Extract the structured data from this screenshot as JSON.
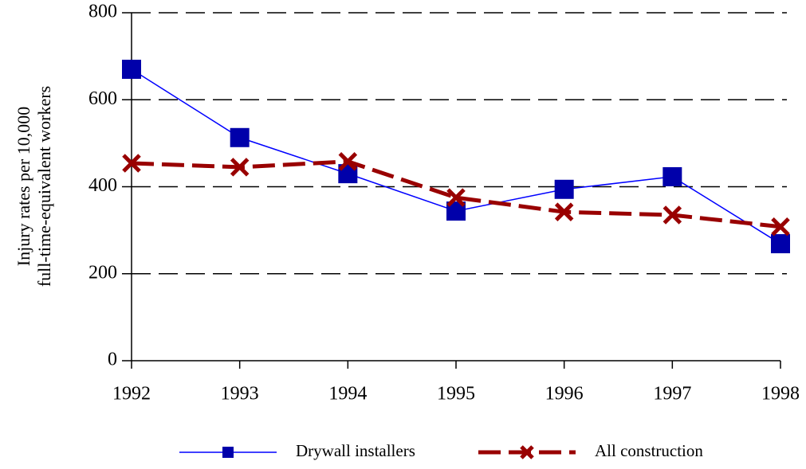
{
  "chart_data": {
    "type": "line",
    "y_label": [
      "Injury rates per 10,000",
      "full-time-equivalent workers"
    ],
    "categories": [
      "1992",
      "1993",
      "1994",
      "1995",
      "1996",
      "1997",
      "1998"
    ],
    "series": [
      {
        "name": "Drywall installers",
        "color": "#0000aa",
        "line_color": "#0000ff",
        "marker": "square",
        "dashed": false,
        "values": [
          670,
          513,
          430,
          344,
          394,
          423,
          269
        ]
      },
      {
        "name": "All construction",
        "color": "#990000",
        "line_color": "#990000",
        "marker": "x",
        "dashed": true,
        "values": [
          454,
          445,
          458,
          375,
          342,
          335,
          308
        ]
      }
    ],
    "ylim": [
      0,
      800
    ],
    "yticks": [
      0,
      200,
      400,
      600,
      800
    ],
    "grid": true,
    "legend": "bottom"
  }
}
